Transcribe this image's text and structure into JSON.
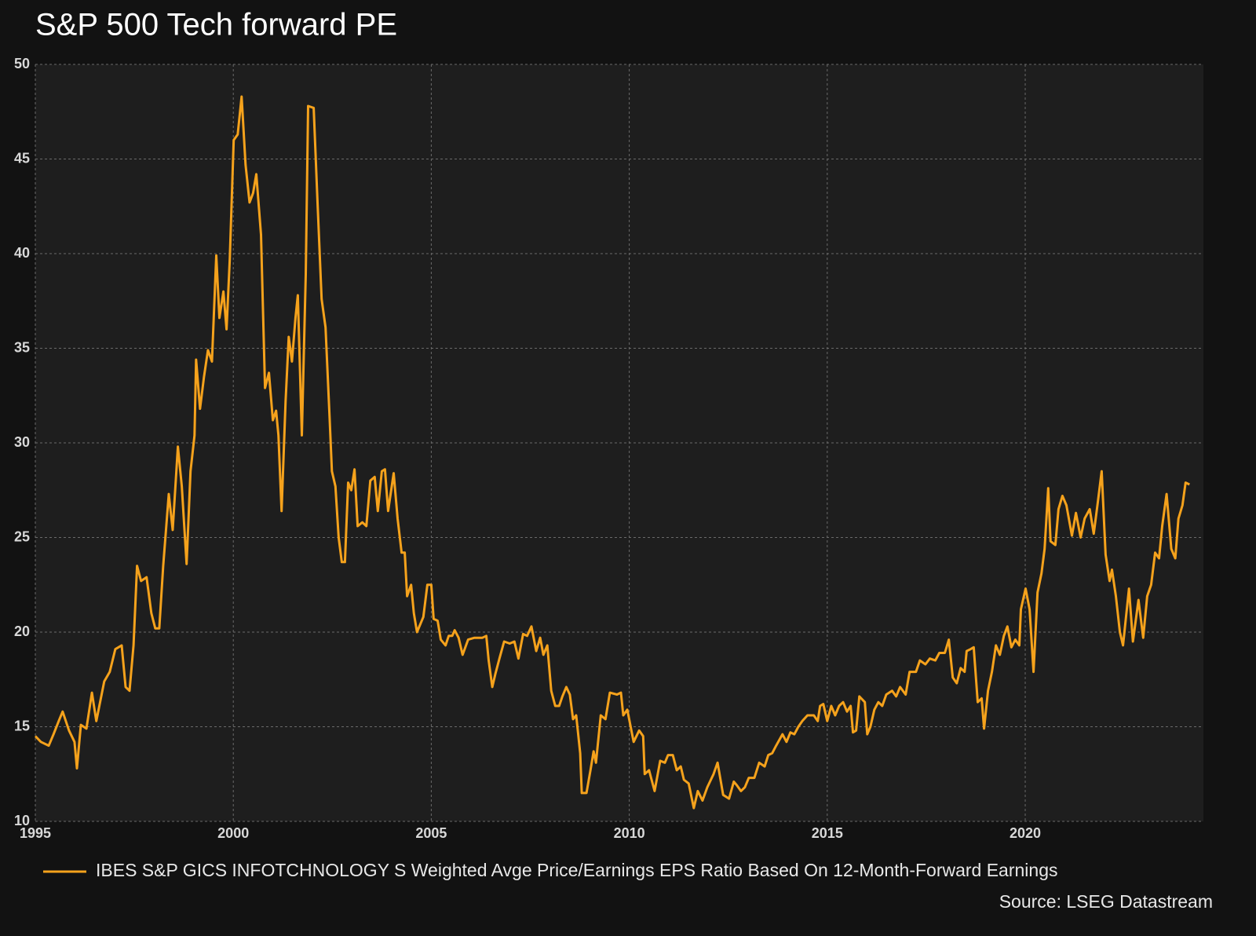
{
  "chart_data": {
    "type": "line",
    "title": "S&P 500 Tech forward PE",
    "source": "Source: LSEG Datastream",
    "legend": "bottom",
    "grid": true,
    "xlim": [
      1995,
      2024.5
    ],
    "xticks": [
      1995,
      2000,
      2005,
      2010,
      2015,
      2020
    ],
    "ylim": [
      10,
      50
    ],
    "yticks": [
      10,
      15,
      20,
      25,
      30,
      35,
      40,
      45,
      50
    ],
    "x": [
      1995.0,
      1995.14,
      1995.34,
      1995.46,
      1995.59,
      1995.69,
      1995.85,
      1995.99,
      1996.05,
      1996.15,
      1996.29,
      1996.43,
      1996.54,
      1996.74,
      1996.88,
      1997.02,
      1997.18,
      1997.28,
      1997.38,
      1997.48,
      1997.57,
      1997.67,
      1997.81,
      1997.93,
      1998.03,
      1998.13,
      1998.23,
      1998.37,
      1998.47,
      1998.6,
      1998.7,
      1998.82,
      1998.92,
      1999.02,
      1999.06,
      1999.16,
      1999.26,
      1999.36,
      1999.46,
      1999.57,
      1999.65,
      1999.75,
      1999.83,
      1999.91,
      2000.01,
      2000.11,
      2000.21,
      2000.31,
      2000.41,
      2000.5,
      2000.58,
      2000.7,
      2000.8,
      2000.9,
      2001.0,
      2001.08,
      2001.14,
      2001.22,
      2001.32,
      2001.4,
      2001.48,
      2001.57,
      2001.63,
      2001.73,
      2001.83,
      2001.89,
      2002.03,
      2002.13,
      2002.23,
      2002.33,
      2002.43,
      2002.49,
      2002.58,
      2002.66,
      2002.74,
      2002.82,
      2002.9,
      2002.98,
      2003.06,
      2003.14,
      2003.26,
      2003.36,
      2003.46,
      2003.57,
      2003.65,
      2003.75,
      2003.83,
      2003.91,
      2004.05,
      2004.15,
      2004.25,
      2004.33,
      2004.39,
      2004.49,
      2004.56,
      2004.64,
      2004.8,
      2004.9,
      2005.0,
      2005.06,
      2005.16,
      2005.24,
      2005.36,
      2005.44,
      2005.53,
      2005.59,
      2005.69,
      2005.79,
      2005.93,
      2006.09,
      2006.29,
      2006.39,
      2006.45,
      2006.54,
      2006.62,
      2006.72,
      2006.84,
      2006.98,
      2007.1,
      2007.2,
      2007.32,
      2007.42,
      2007.53,
      2007.65,
      2007.75,
      2007.83,
      2007.93,
      2008.03,
      2008.13,
      2008.23,
      2008.31,
      2008.41,
      2008.5,
      2008.58,
      2008.66,
      2008.76,
      2008.8,
      2008.92,
      2009.02,
      2009.1,
      2009.16,
      2009.28,
      2009.4,
      2009.51,
      2009.69,
      2009.79,
      2009.85,
      2009.95,
      2010.11,
      2010.25,
      2010.35,
      2010.39,
      2010.5,
      2010.64,
      2010.78,
      2010.9,
      2010.98,
      2011.1,
      2011.2,
      2011.3,
      2011.38,
      2011.5,
      2011.63,
      2011.73,
      2011.85,
      2011.97,
      2012.13,
      2012.23,
      2012.37,
      2012.52,
      2012.64,
      2012.72,
      2012.82,
      2012.92,
      2013.02,
      2013.16,
      2013.28,
      2013.42,
      2013.51,
      2013.61,
      2013.71,
      2013.87,
      2013.97,
      2014.07,
      2014.17,
      2014.27,
      2014.37,
      2014.5,
      2014.66,
      2014.76,
      2014.82,
      2014.9,
      2015.0,
      2015.1,
      2015.2,
      2015.3,
      2015.4,
      2015.5,
      2015.59,
      2015.65,
      2015.73,
      2015.81,
      2015.95,
      2016.01,
      2016.09,
      2016.19,
      2016.29,
      2016.39,
      2016.49,
      2016.64,
      2016.74,
      2016.84,
      2016.98,
      2017.08,
      2017.24,
      2017.34,
      2017.48,
      2017.59,
      2017.73,
      2017.83,
      2017.97,
      2018.07,
      2018.17,
      2018.27,
      2018.37,
      2018.47,
      2018.52,
      2018.62,
      2018.7,
      2018.8,
      2018.9,
      2018.96,
      2019.06,
      2019.16,
      2019.26,
      2019.36,
      2019.46,
      2019.55,
      2019.65,
      2019.75,
      2019.85,
      2019.89,
      2020.01,
      2020.11,
      2020.21,
      2020.31,
      2020.41,
      2020.49,
      2020.58,
      2020.64,
      2020.76,
      2020.84,
      2020.94,
      2021.04,
      2021.18,
      2021.28,
      2021.4,
      2021.5,
      2021.63,
      2021.73,
      2021.83,
      2021.93,
      2022.03,
      2022.13,
      2022.19,
      2022.29,
      2022.39,
      2022.47,
      2022.62,
      2022.72,
      2022.86,
      2022.98,
      2023.08,
      2023.18,
      2023.28,
      2023.38,
      2023.46,
      2023.57,
      2023.69,
      2023.79,
      2023.87,
      2023.97,
      2024.05,
      2024.15
    ],
    "series": [
      {
        "name": "IBES S&P GICS INFOTCHNOLOGY S Weighted Avge Price/Earnings EPS Ratio Based On 12-Month-Forward Earnings",
        "color": "#f5a21c",
        "values": [
          14.5,
          14.2,
          14.0,
          14.6,
          15.3,
          15.8,
          14.8,
          14.2,
          12.8,
          15.1,
          14.9,
          16.8,
          15.3,
          17.4,
          17.9,
          19.1,
          19.3,
          17.1,
          16.9,
          19.3,
          23.5,
          22.7,
          22.9,
          21.0,
          20.2,
          20.2,
          23.5,
          27.3,
          25.4,
          29.8,
          27.7,
          23.6,
          28.5,
          30.4,
          34.4,
          31.8,
          33.5,
          34.9,
          34.3,
          39.9,
          36.6,
          38.0,
          36.0,
          39.7,
          46.0,
          46.3,
          48.3,
          44.7,
          42.7,
          43.2,
          44.2,
          41.0,
          32.9,
          33.7,
          31.2,
          31.7,
          30.4,
          26.4,
          32.2,
          35.6,
          34.3,
          36.6,
          37.8,
          30.4,
          38.9,
          47.8,
          47.7,
          42.6,
          37.6,
          36.1,
          31.4,
          28.5,
          27.7,
          25.0,
          23.7,
          23.7,
          27.9,
          27.5,
          28.6,
          25.6,
          25.8,
          25.6,
          28.0,
          28.2,
          26.4,
          28.5,
          28.6,
          26.4,
          28.4,
          26.0,
          24.2,
          24.2,
          21.9,
          22.5,
          21.0,
          20.0,
          20.8,
          22.5,
          22.5,
          20.7,
          20.6,
          19.6,
          19.3,
          19.8,
          19.8,
          20.1,
          19.7,
          18.8,
          19.6,
          19.7,
          19.7,
          19.8,
          18.5,
          17.1,
          17.8,
          18.6,
          19.5,
          19.4,
          19.5,
          18.6,
          19.9,
          19.8,
          20.3,
          19.0,
          19.7,
          18.8,
          19.3,
          16.9,
          16.1,
          16.1,
          16.6,
          17.1,
          16.7,
          15.4,
          15.6,
          13.6,
          11.5,
          11.5,
          12.7,
          13.7,
          13.1,
          15.6,
          15.4,
          16.8,
          16.7,
          16.8,
          15.6,
          15.9,
          14.2,
          14.8,
          14.5,
          12.5,
          12.7,
          11.6,
          13.2,
          13.1,
          13.5,
          13.5,
          12.7,
          12.9,
          12.2,
          12.0,
          10.7,
          11.6,
          11.1,
          11.8,
          12.5,
          13.1,
          11.4,
          11.2,
          12.1,
          11.9,
          11.6,
          11.8,
          12.3,
          12.3,
          13.1,
          12.9,
          13.5,
          13.6,
          14.0,
          14.6,
          14.2,
          14.7,
          14.6,
          15.0,
          15.3,
          15.6,
          15.6,
          15.3,
          16.1,
          16.2,
          15.3,
          16.1,
          15.6,
          16.1,
          16.3,
          15.8,
          16.1,
          14.7,
          14.8,
          16.6,
          16.3,
          14.6,
          15.0,
          15.9,
          16.3,
          16.1,
          16.7,
          16.9,
          16.6,
          17.1,
          16.7,
          17.9,
          17.9,
          18.5,
          18.3,
          18.6,
          18.5,
          18.9,
          18.9,
          19.6,
          17.6,
          17.3,
          18.1,
          17.9,
          19.0,
          19.1,
          19.2,
          16.3,
          16.5,
          14.9,
          16.9,
          17.9,
          19.3,
          18.8,
          19.8,
          20.3,
          19.2,
          19.6,
          19.3,
          21.2,
          22.3,
          21.2,
          17.9,
          22.1,
          23.1,
          24.4,
          27.6,
          24.8,
          24.6,
          26.5,
          27.2,
          26.7,
          25.1,
          26.3,
          25.0,
          26.0,
          26.5,
          25.2,
          26.8,
          28.5,
          24.1,
          22.7,
          23.3,
          21.9,
          20.0,
          19.3,
          22.3,
          19.5,
          21.7,
          19.7,
          21.9,
          22.5,
          24.2,
          23.9,
          25.6,
          27.3,
          24.4,
          23.9,
          26.0,
          26.7,
          27.9,
          27.8
        ]
      }
    ]
  }
}
